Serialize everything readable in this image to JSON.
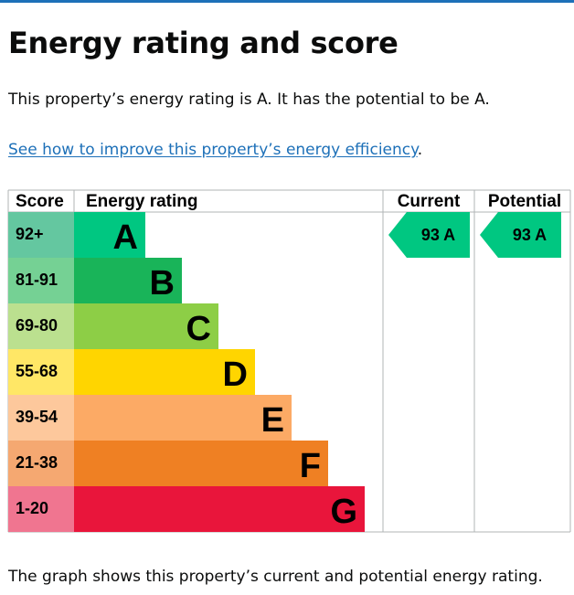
{
  "page": {
    "title": "Energy rating and score",
    "intro": "This property’s energy rating is A. It has the potential to be A.",
    "link_text": "See how to improve this property’s energy efficiency",
    "link_suffix": ".",
    "footer": "The graph shows this property’s current and potential energy rating."
  },
  "chart_data": {
    "type": "bar",
    "headers": {
      "score": "Score",
      "rating": "Energy rating",
      "current": "Current",
      "potential": "Potential"
    },
    "bands": [
      {
        "score": "92+",
        "letter": "A",
        "color": "#008054",
        "light": "#64c7a0",
        "color_main": "#00c781"
      },
      {
        "score": "81-91",
        "letter": "B",
        "color": "#19b459",
        "light": "#75d194"
      },
      {
        "score": "69-80",
        "letter": "C",
        "color": "#8dce46",
        "light": "#bbe08f"
      },
      {
        "score": "55-68",
        "letter": "D",
        "color": "#ffd500",
        "light": "#ffe766"
      },
      {
        "score": "39-54",
        "letter": "E",
        "color": "#fcaa65",
        "light": "#fdc89c"
      },
      {
        "score": "21-38",
        "letter": "F",
        "color": "#ef8023",
        "light": "#f5a871"
      },
      {
        "score": "1-20",
        "letter": "G",
        "color": "#e9153b",
        "light": "#f07590"
      }
    ],
    "current": {
      "value": 93,
      "letter": "A",
      "label": "93 A",
      "color": "#00c781"
    },
    "potential": {
      "value": 93,
      "letter": "A",
      "label": "93 A",
      "color": "#00c781"
    }
  }
}
